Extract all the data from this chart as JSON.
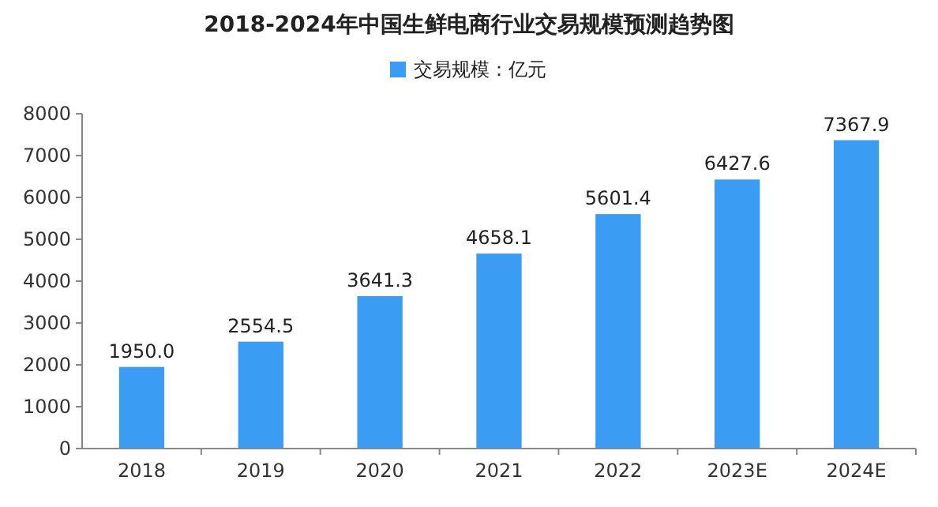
{
  "chart_data": {
    "type": "bar",
    "title": "2018-2024年中国生鲜电商行业交易规模预测趋势图",
    "categories": [
      "2018",
      "2019",
      "2020",
      "2021",
      "2022",
      "2023E",
      "2024E"
    ],
    "series": [
      {
        "name": "交易规模：亿元",
        "color": "#3a9cf2",
        "values": [
          1950.0,
          2554.5,
          3641.3,
          4658.1,
          5601.4,
          6427.6,
          7367.9
        ]
      }
    ],
    "value_labels": [
      "1950.0",
      "2554.5",
      "3641.3",
      "4658.1",
      "5601.4",
      "6427.6",
      "7367.9"
    ],
    "ylim": [
      0,
      8000
    ],
    "yticks": [
      0,
      1000,
      2000,
      3000,
      4000,
      5000,
      6000,
      7000,
      8000
    ],
    "grid": false,
    "legend": "top"
  }
}
